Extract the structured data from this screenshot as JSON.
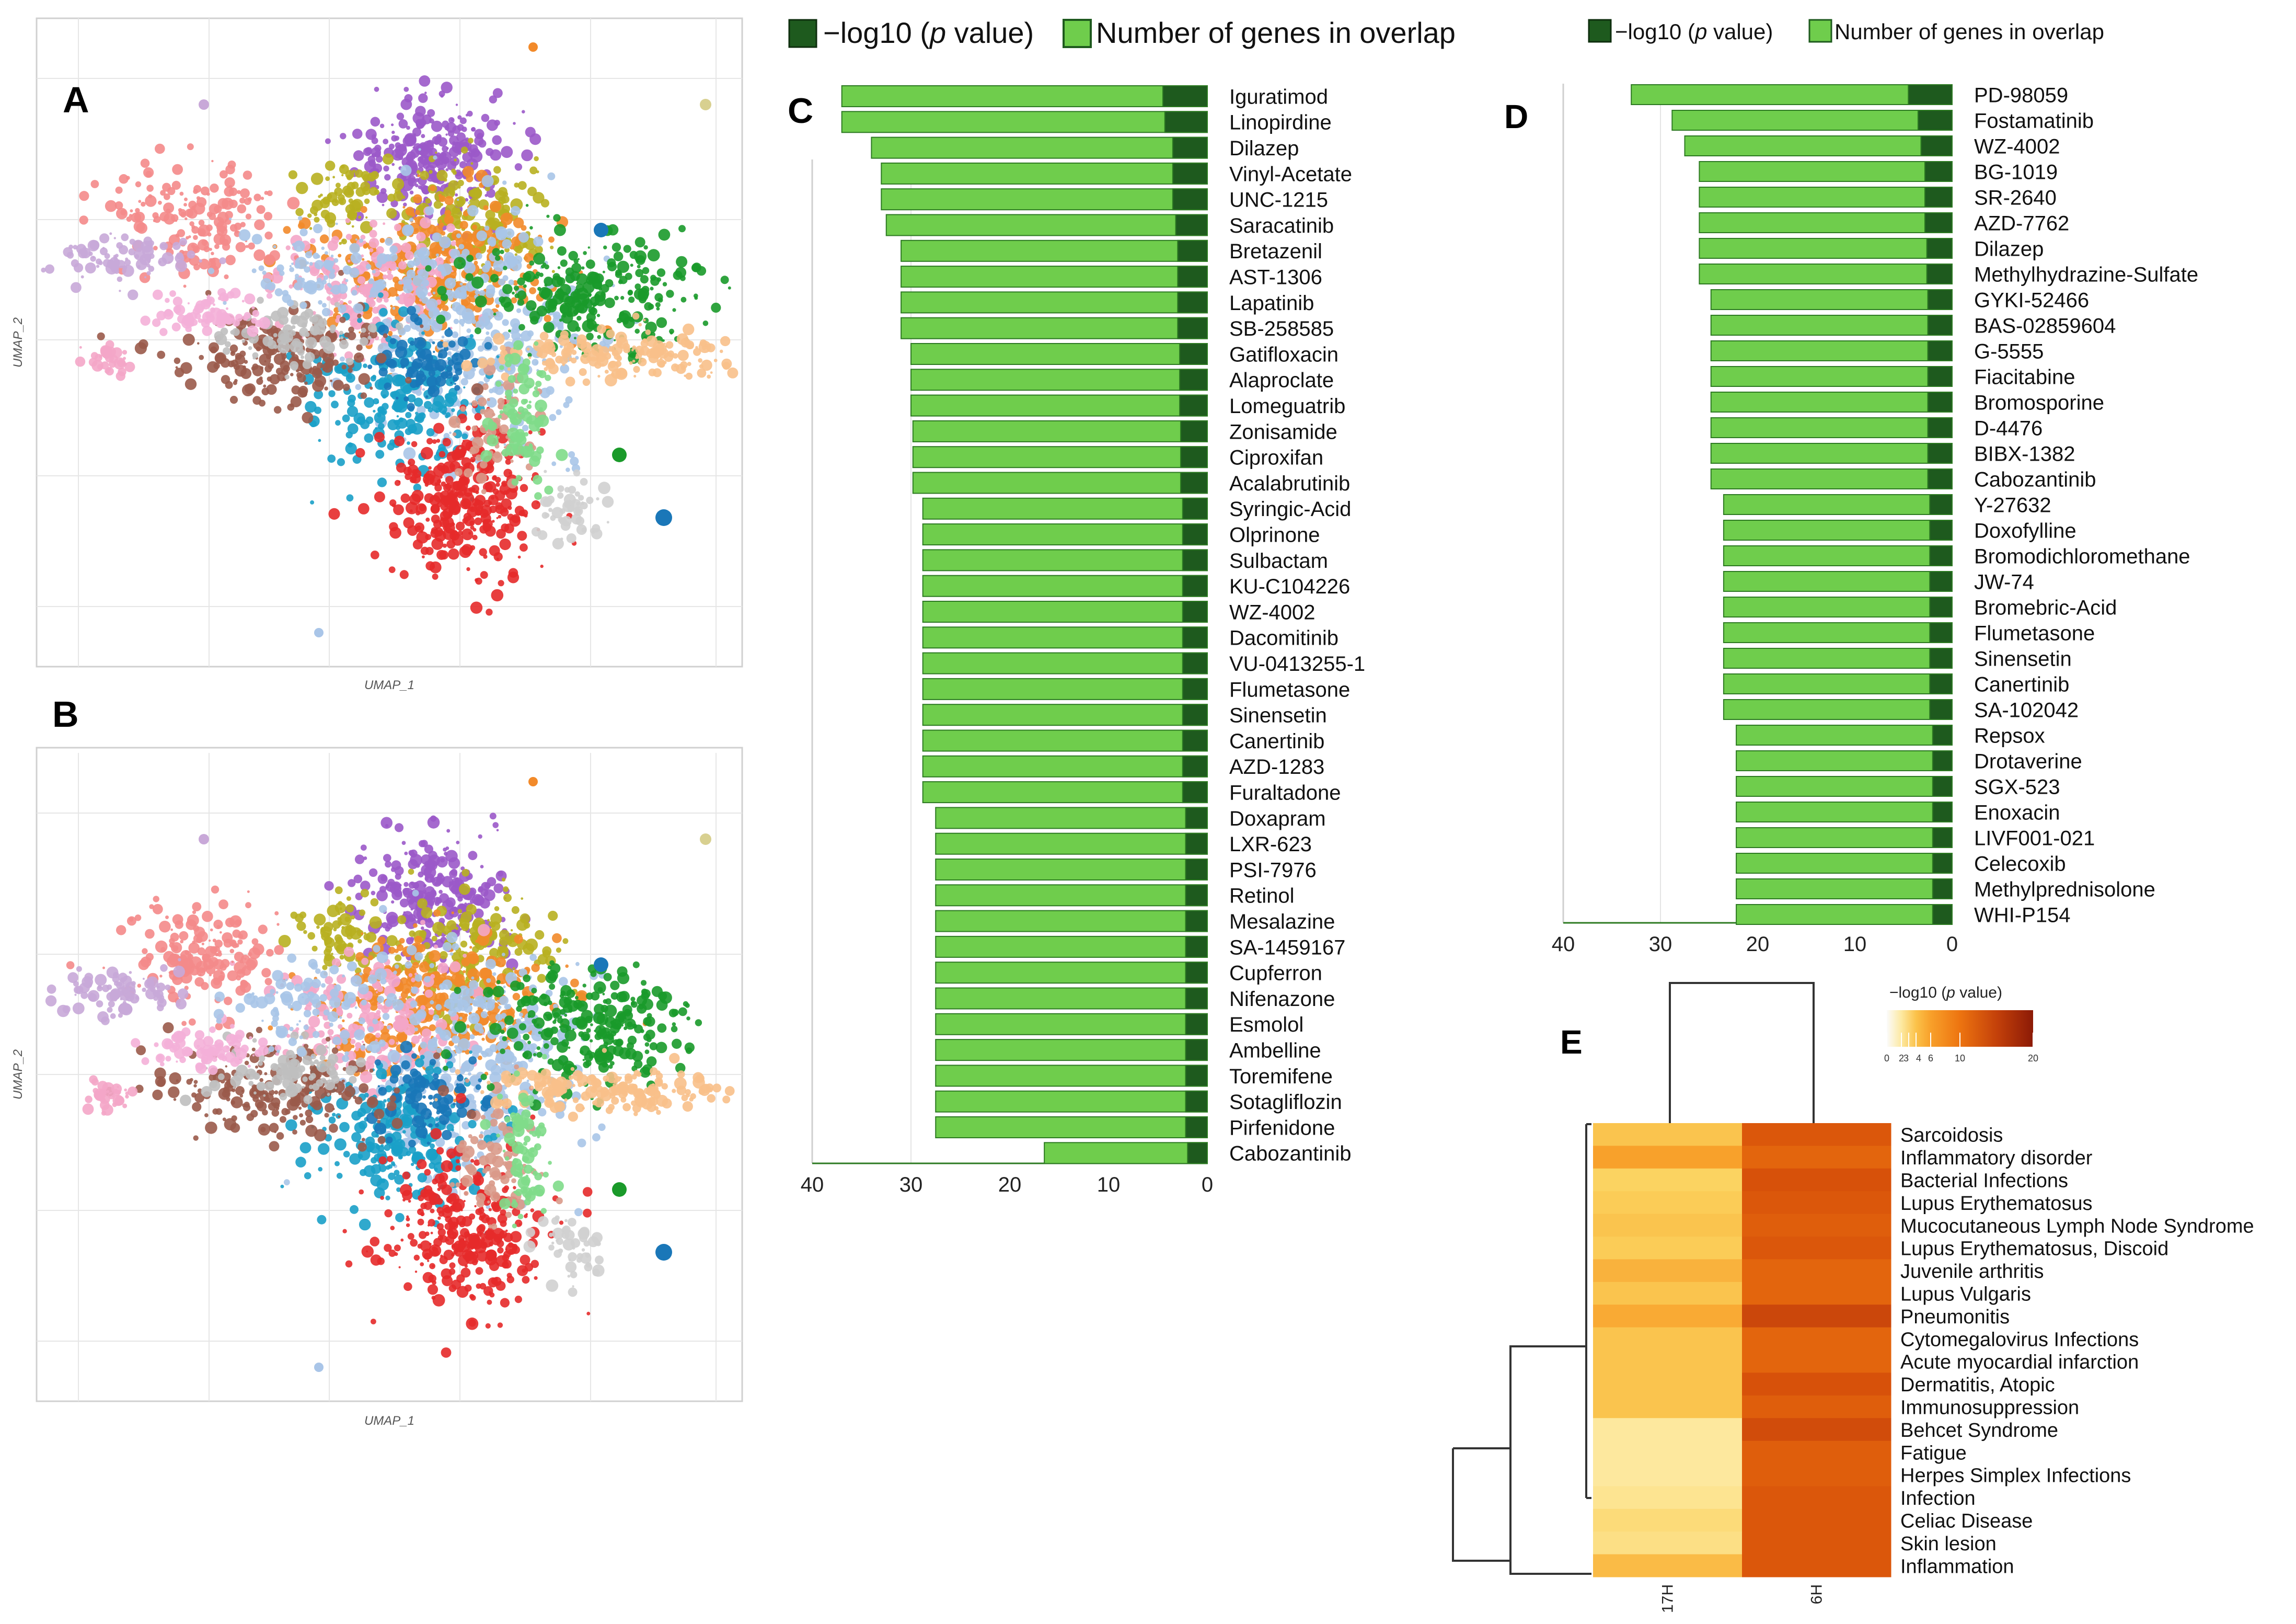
{
  "panels": {
    "A": "A",
    "B": "B",
    "C": "C",
    "D": "D",
    "E": "E"
  },
  "umap": {
    "xlabel": "UMAP_1",
    "ylabel": "UMAP_2"
  },
  "legend": {
    "pvalue_prefix": "−log10 (",
    "pvalue_italic": "p",
    "pvalue_suffix": " value)",
    "genes_label": "Number of genes in overlap",
    "colors": {
      "pvalue": "#1e5a1e",
      "genes": "#6fcd4c",
      "border": "#2d7a22"
    }
  },
  "chart_data": [
    {
      "panel": "C",
      "type": "bar",
      "orientation": "horizontal-reversed",
      "title": "",
      "series": [
        {
          "name": "Number of genes in overlap"
        },
        {
          "name": "−log10 (p value)"
        }
      ],
      "categories": [
        "Iguratimod",
        "Linopirdine",
        "Dilazep",
        "Vinyl-Acetate",
        "UNC-1215",
        "Saracatinib",
        "Bretazenil",
        "AST-1306",
        "Lapatinib",
        "SB-258585",
        "Gatifloxacin",
        "Alaproclate",
        "Lomeguatrib",
        "Zonisamide",
        "Ciproxifan",
        "Acalabrutinib",
        "Syringic-Acid",
        "Olprinone",
        "Sulbactam",
        "KU-C104226",
        "WZ-4002",
        "Dacomitinib",
        "VU-0413255-1",
        "Flumetasone",
        "Sinensetin",
        "Canertinib",
        "AZD-1283",
        "Furaltadone",
        "Doxapram",
        "LXR-623",
        "PSI-7976",
        "Retinol",
        "Mesalazine",
        "SA-1459167",
        "Cupferron",
        "Nifenazone",
        "Esmolol",
        "Ambelline",
        "Toremifene",
        "Sotagliflozin",
        "Pirfenidone",
        "Cabozantinib"
      ],
      "genes": [
        37,
        37,
        34,
        33,
        33,
        32.5,
        31,
        31,
        31,
        31,
        30,
        30,
        30,
        29.8,
        29.8,
        29.8,
        28.8,
        28.8,
        28.8,
        28.8,
        28.8,
        28.8,
        28.8,
        28.8,
        28.8,
        28.8,
        28.8,
        28.8,
        27.5,
        27.5,
        27.5,
        27.5,
        27.5,
        27.5,
        27.5,
        27.5,
        27.5,
        27.5,
        27.5,
        27.5,
        27.5,
        16.5
      ],
      "pvalue": [
        4.5,
        4.3,
        3.5,
        3.5,
        3.5,
        3.2,
        3,
        3,
        3,
        3,
        2.8,
        2.8,
        2.8,
        2.7,
        2.7,
        2.7,
        2.5,
        2.5,
        2.5,
        2.5,
        2.5,
        2.5,
        2.5,
        2.5,
        2.5,
        2.5,
        2.5,
        2.5,
        2.2,
        2.2,
        2.2,
        2.2,
        2.2,
        2.2,
        2.2,
        2.2,
        2.2,
        2.2,
        2.2,
        2.2,
        2.2,
        2
      ],
      "xlim": [
        40,
        0
      ],
      "xticks": [
        "40",
        "30",
        "20",
        "10",
        "0"
      ]
    },
    {
      "panel": "D",
      "type": "bar",
      "orientation": "horizontal-reversed",
      "title": "",
      "series": [
        {
          "name": "Number of genes in overlap"
        },
        {
          "name": "−log10 (p value)"
        }
      ],
      "categories": [
        "PD-98059",
        "Fostamatinib",
        "WZ-4002",
        "BG-1019",
        "SR-2640",
        "AZD-7762",
        "Dilazep",
        "Methylhydrazine-Sulfate",
        "GYKI-52466",
        "BAS-02859604",
        "G-5555",
        "Fiacitabine",
        "Bromosporine",
        "D-4476",
        "BIBX-1382",
        "Cabozantinib",
        "Y-27632",
        "Doxofylline",
        "Bromodichloromethane",
        "JW-74",
        "Bromebric-Acid",
        "Flumetasone",
        "Sinensetin",
        "Canertinib",
        "SA-102042",
        "Repsox",
        "Drotaverine",
        "SGX-523",
        "Enoxacin",
        "LIVF001-021",
        "Celecoxib",
        "Methylprednisolone",
        "WHI-P154"
      ],
      "genes": [
        33,
        28.8,
        27.5,
        26,
        26,
        26,
        26,
        26,
        24.8,
        24.8,
        24.8,
        24.8,
        24.8,
        24.8,
        24.8,
        24.8,
        23.5,
        23.5,
        23.5,
        23.5,
        23.5,
        23.5,
        23.5,
        23.5,
        23.5,
        22.2,
        22.2,
        22.2,
        22.2,
        22.2,
        22.2,
        22.2,
        22.2
      ],
      "pvalue": [
        4.5,
        3.5,
        3.2,
        2.8,
        2.8,
        2.8,
        2.6,
        2.6,
        2.5,
        2.5,
        2.5,
        2.5,
        2.5,
        2.5,
        2.5,
        2.5,
        2.3,
        2.3,
        2.3,
        2.3,
        2.3,
        2.3,
        2.3,
        2.3,
        2.3,
        2,
        2,
        2,
        2,
        2,
        2,
        2,
        2
      ],
      "xlim": [
        40,
        0
      ],
      "xticks": [
        "40",
        "30",
        "20",
        "10",
        "0"
      ]
    },
    {
      "panel": "E",
      "type": "heatmap",
      "title": "",
      "columns": [
        "17H",
        "6H"
      ],
      "rows": [
        "Sarcoidosis",
        "Inflammatory disorder",
        "Bacterial Infections",
        "Lupus Erythematosus",
        "Mucocutaneous Lymph Node Syndrome",
        "Lupus Erythematosus, Discoid",
        "Juvenile arthritis",
        "Lupus Vulgaris",
        "Pneumonitis",
        "Cytomegalovirus Infections",
        "Acute myocardial infarction",
        "Dermatitis, Atopic",
        "Immunosuppression",
        "Behcet Syndrome",
        "Fatigue",
        "Herpes Simplex Infections",
        "Infection",
        "Celiac Disease",
        "Skin lesion",
        "Inflammation"
      ],
      "values": [
        [
          6.5,
          14
        ],
        [
          8.5,
          13
        ],
        [
          5.5,
          14.5
        ],
        [
          6,
          14
        ],
        [
          6.5,
          13.5
        ],
        [
          6,
          14
        ],
        [
          7.5,
          13
        ],
        [
          6.5,
          13
        ],
        [
          8,
          15.5
        ],
        [
          6.5,
          13
        ],
        [
          6.5,
          13
        ],
        [
          6.5,
          14.5
        ],
        [
          6.5,
          13.5
        ],
        [
          3,
          15
        ],
        [
          3,
          13.5
        ],
        [
          3,
          13.5
        ],
        [
          3.5,
          14
        ],
        [
          4.5,
          14
        ],
        [
          4,
          14
        ],
        [
          7,
          14
        ]
      ],
      "colorbar": {
        "title_prefix": "−log10 (",
        "title_italic": "p",
        "title_suffix": " value)",
        "ticks": [
          "0",
          "2",
          "3",
          "4",
          "6",
          "10",
          "20"
        ],
        "tick_values": [
          0,
          2,
          3,
          4,
          6,
          10,
          20
        ],
        "range": [
          0,
          20
        ]
      },
      "colorscale": [
        "#fbfbfb",
        "#fde9a1",
        "#fbd15c",
        "#f8a02a",
        "#f07c10",
        "#d9530a",
        "#b8360c",
        "#8c1a06"
      ]
    }
  ]
}
